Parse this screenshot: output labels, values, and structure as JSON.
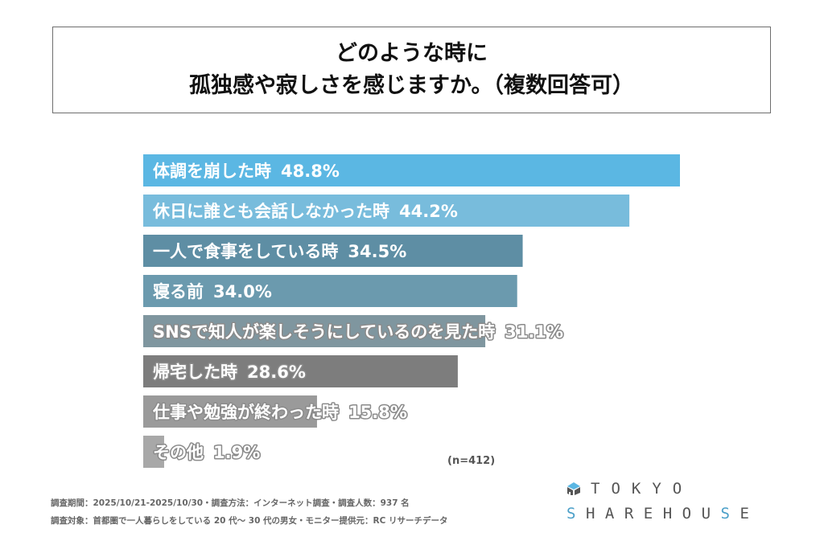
{
  "chart_data": {
    "type": "bar",
    "orientation": "horizontal",
    "title": [
      "どのような時に",
      "孤独感や寂しさを感じますか。（複数回答可）"
    ],
    "categories": [
      "体調を崩した時",
      "休日に誰とも会話しなかった時",
      "一人で食事をしている時",
      "寝る前",
      "SNSで知人が楽しそうにしているのを見た時",
      "帰宅した時",
      "仕事や勉強が終わった時",
      "その他"
    ],
    "values": [
      48.8,
      44.2,
      34.5,
      34.0,
      31.1,
      28.6,
      15.8,
      1.9
    ],
    "value_labels": [
      "48.8%",
      "44.2%",
      "34.5%",
      "34.0%",
      "31.1%",
      "28.6%",
      "15.8%",
      "1.9%"
    ],
    "colors": [
      "#5bb7e3",
      "#78bcdc",
      "#5e8ea4",
      "#6b9aae",
      "#7f969f",
      "#7d7d7d",
      "#9a9a9a",
      "#a8a8a8"
    ],
    "unit": "%",
    "xlim": [
      0,
      50
    ],
    "grid": false,
    "legend": "none",
    "sample_size": "(n=412)"
  },
  "footer": {
    "line1": "調査期間：2025/10/21-2025/10/30・調査方法：インターネット調査・調査人数：937 名",
    "line2": "調査対象：首都圏で一人暮らしをしている 20 代～ 30 代の男女・モニター提供元：RC リサーチデータ"
  },
  "logo": {
    "line1": "TOKYO",
    "line2_parts": [
      "S",
      "HAREHOU",
      "S",
      "E"
    ],
    "accent_color": "#4a9fc8"
  }
}
